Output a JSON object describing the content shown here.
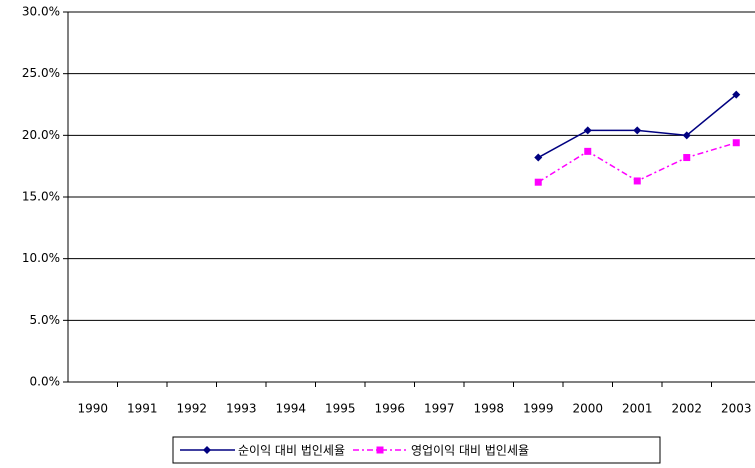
{
  "chart_data": {
    "type": "line",
    "categories": [
      "1990",
      "1991",
      "1992",
      "1993",
      "1994",
      "1995",
      "1996",
      "1997",
      "1998",
      "1999",
      "2000",
      "2001",
      "2002",
      "2003"
    ],
    "series": [
      {
        "name": "순이익 대비 법인세율",
        "color": "#000080",
        "marker": "diamond",
        "dash": "solid",
        "values": [
          null,
          null,
          null,
          null,
          null,
          null,
          null,
          null,
          null,
          18.2,
          20.4,
          20.4,
          20.0,
          23.3
        ]
      },
      {
        "name": "영업이익 대비 법인세율",
        "color": "#ff00ff",
        "marker": "square",
        "dash": "dashdot",
        "values": [
          null,
          null,
          null,
          null,
          null,
          null,
          null,
          null,
          null,
          16.2,
          18.7,
          16.3,
          18.2,
          19.4
        ]
      }
    ],
    "ylim": [
      0,
      30
    ],
    "yticks": [
      {
        "value": 0,
        "label": "0.0%"
      },
      {
        "value": 5,
        "label": "5.0%"
      },
      {
        "value": 10,
        "label": "10.0%"
      },
      {
        "value": 15,
        "label": "15.0%"
      },
      {
        "value": 20,
        "label": "20.0%"
      },
      {
        "value": 25,
        "label": "25.0%"
      },
      {
        "value": 30,
        "label": "30.0%"
      }
    ],
    "grid": true,
    "legend": "bottom"
  }
}
